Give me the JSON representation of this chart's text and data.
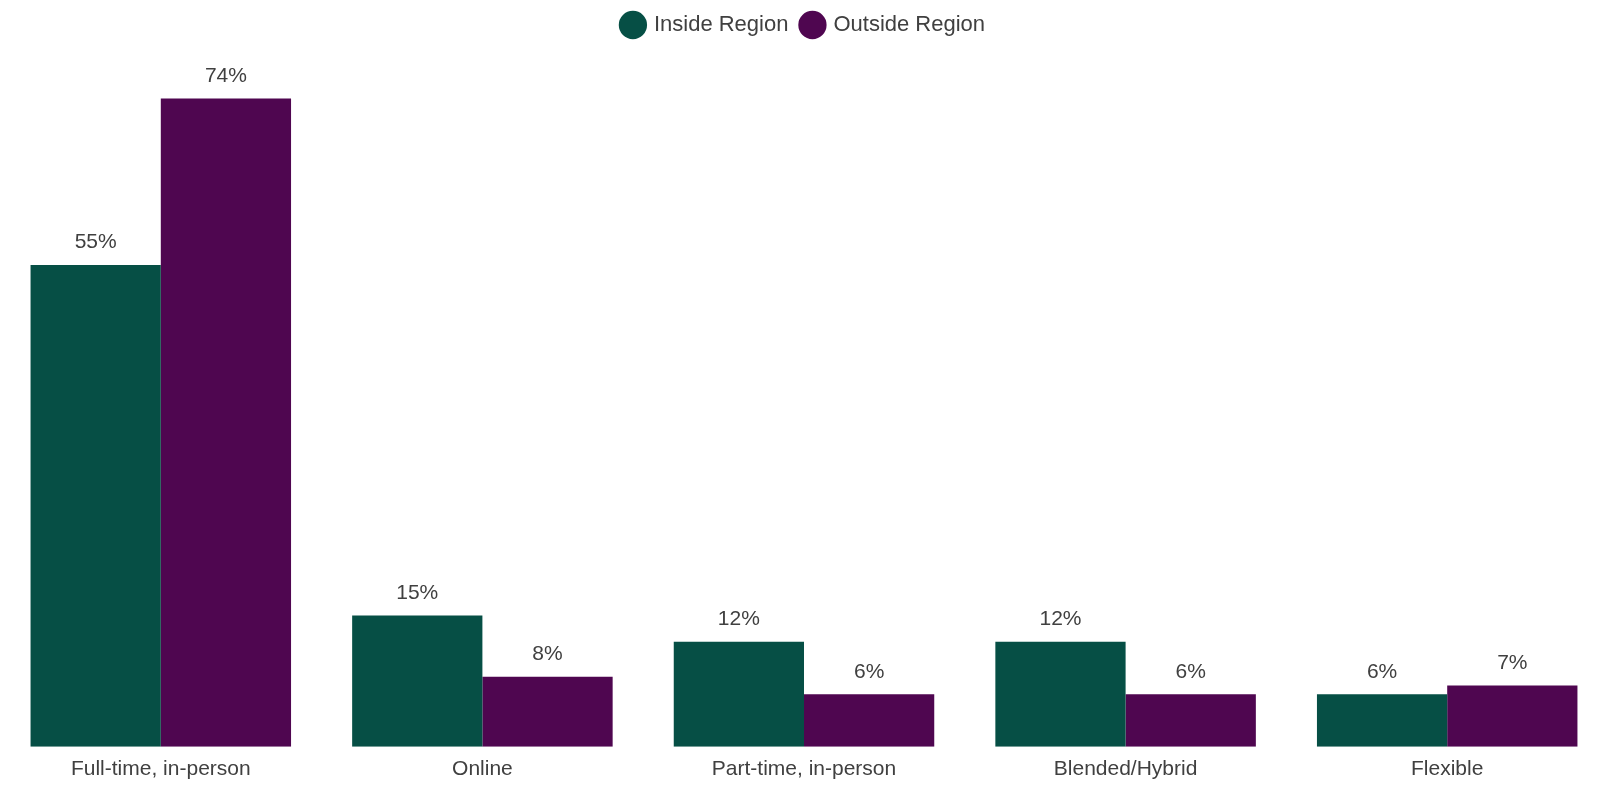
{
  "chart_data": {
    "type": "bar",
    "categories": [
      "Full-time, in-person",
      "Online",
      "Part-time, in-person",
      "Blended/Hybrid",
      "Flexible"
    ],
    "series": [
      {
        "name": "Inside Region",
        "color": "#064f45",
        "values": [
          55,
          15,
          12,
          12,
          6
        ],
        "value_labels": [
          "55%",
          "15%",
          "12%",
          "12%",
          "6%"
        ]
      },
      {
        "name": "Outside Region",
        "color": "#4f0650",
        "values": [
          74,
          8,
          6,
          6,
          7
        ],
        "value_labels": [
          "74%",
          "8%",
          "6%",
          "6%",
          "7%"
        ]
      }
    ],
    "legend": "top"
  }
}
